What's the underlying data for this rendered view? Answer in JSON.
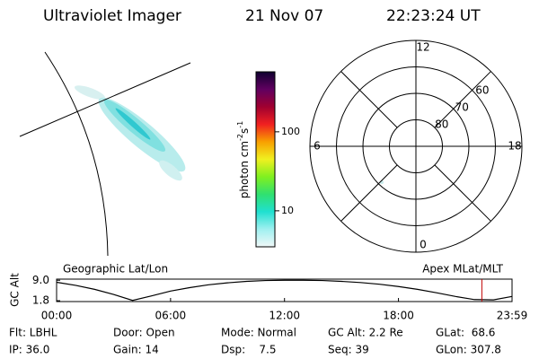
{
  "header": {
    "title": "Ultraviolet Imager",
    "date": "21 Nov 07",
    "time": "22:23:24 UT"
  },
  "colorbar": {
    "label": "photon cm",
    "label_exp1": "-2",
    "label_s": "s",
    "label_exp2": "-1",
    "log": true,
    "lim": [
      3.5,
      575
    ],
    "ticks": [
      10,
      100
    ],
    "colors": [
      "#f0f8f8",
      "#a0f0f0",
      "#20e0d0",
      "#30e070",
      "#80f020",
      "#f0f020",
      "#f8a000",
      "#f02020",
      "#a00030",
      "#600060",
      "#100030"
    ]
  },
  "polar": {
    "rlim": [
      90,
      50
    ],
    "lat_rings": [
      80,
      70,
      60
    ],
    "mlt_labels": [
      12,
      6,
      0,
      18
    ]
  },
  "chart_data": {
    "type": "line",
    "left_label": "Geographic Lat/Lon",
    "right_label": "Apex MLat/MLT",
    "ylabel": "GC Alt",
    "x": [
      0,
      1,
      2,
      3,
      4,
      5,
      6,
      7,
      8,
      9,
      10,
      11,
      12,
      13,
      14,
      15,
      16,
      17,
      18,
      19,
      20,
      21,
      22,
      23,
      23.98
    ],
    "values": [
      8.3,
      7.2,
      5.8,
      4.0,
      1.9,
      3.5,
      5.2,
      6.4,
      7.4,
      8.1,
      8.6,
      8.9,
      9.0,
      9.0,
      8.9,
      8.6,
      8.2,
      7.6,
      6.8,
      5.8,
      4.6,
      3.3,
      2.2,
      2.1,
      3.3
    ],
    "color": "#000000",
    "marker_x": 22.39,
    "marker_color": "#c00000",
    "xlim": [
      0,
      23.98
    ],
    "xticks": [
      {
        "value": 0,
        "label": "00:00"
      },
      {
        "value": 6,
        "label": "06:00"
      },
      {
        "value": 12,
        "label": "12:00"
      },
      {
        "value": 18,
        "label": "18:00"
      },
      {
        "value": 23.98,
        "label": "23:59"
      }
    ],
    "ylim": [
      1.5,
      9.4
    ],
    "yticks": [
      {
        "value": 9,
        "label": "9.0"
      },
      1.8
    ]
  },
  "status": [
    [
      "Flt: LBHL",
      "Door: Open",
      "Mode: Normal",
      "GC Alt: 2.2 Re",
      "GLat:  68.6"
    ],
    [
      "IP: 36.0",
      "Gain: 14",
      "Dsp:    7.5",
      "Seq: 39",
      "GLon: 307.8"
    ]
  ]
}
